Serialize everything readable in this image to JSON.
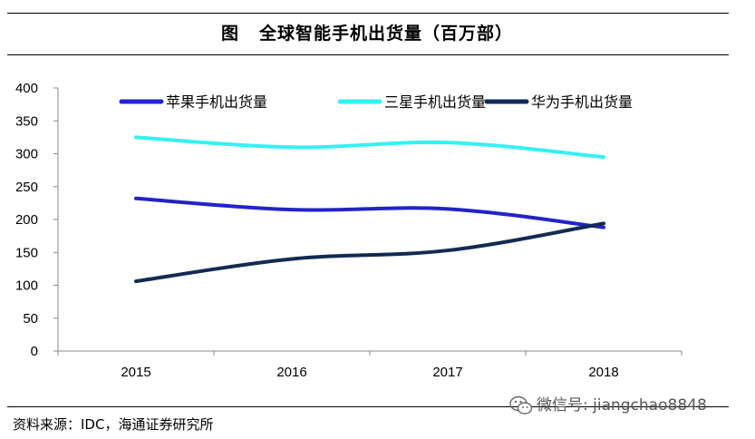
{
  "header": {
    "figure_label": "图",
    "title": "全球智能手机出货量（百万部）"
  },
  "chart_data": {
    "type": "line",
    "categories": [
      "2015",
      "2016",
      "2017",
      "2018"
    ],
    "series": [
      {
        "name": "苹果手机出货量",
        "values": [
          232,
          215,
          216,
          188
        ],
        "color": "#2323c8"
      },
      {
        "name": "三星手机出货量",
        "values": [
          325,
          310,
          317,
          295
        ],
        "color": "#33f2f2"
      },
      {
        "name": "华为手机出货量",
        "values": [
          106,
          140,
          153,
          194
        ],
        "color": "#132a52"
      }
    ],
    "yticks": [
      0,
      50,
      100,
      150,
      200,
      250,
      300,
      350,
      400
    ],
    "ylim": [
      0,
      400
    ],
    "legend_position": "top",
    "grid": false
  },
  "footer": {
    "source": "资料来源：IDC，海通证券研究所"
  },
  "watermark": {
    "text": "微信号: jiangchao8848",
    "icon": "wechat-icon"
  }
}
